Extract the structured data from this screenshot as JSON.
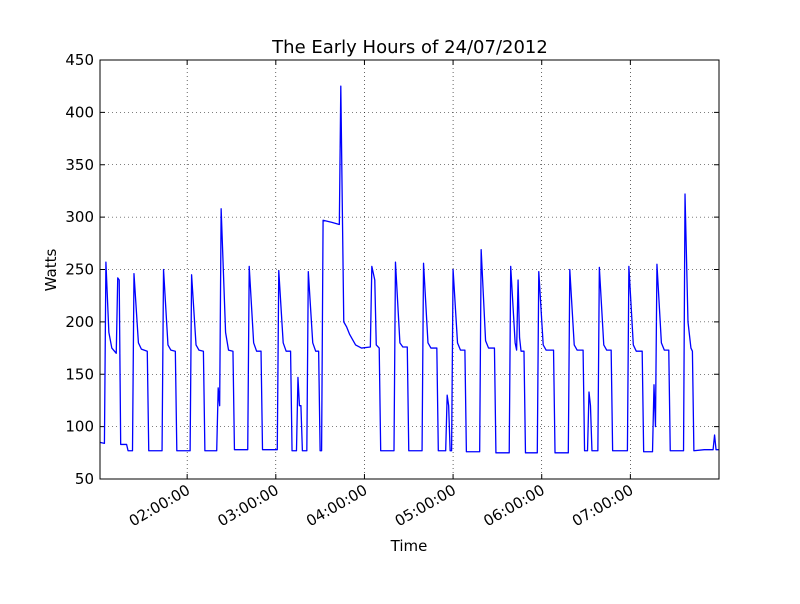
{
  "chart_data": {
    "type": "line",
    "title": "The Early Hours of 24/07/2012",
    "x_label": "Time",
    "y_label": "Watts",
    "color": "#0000ff",
    "grid": true,
    "x": [
      "01:01:00",
      "01:04:00",
      "01:05:00",
      "01:07:00",
      "01:09:00",
      "01:12:00",
      "01:13:00",
      "01:14:00",
      "01:15:00",
      "01:19:00",
      "01:20:00",
      "01:23:00",
      "01:24:00",
      "01:27:00",
      "01:29:00",
      "01:33:00",
      "01:34:00",
      "01:43:00",
      "01:44:00",
      "01:47:00",
      "01:49:00",
      "01:52:00",
      "01:53:00",
      "02:02:00",
      "02:03:00",
      "02:06:00",
      "02:08:00",
      "02:11:00",
      "02:12:00",
      "02:20:00",
      "02:21:00",
      "02:22:00",
      "02:23:00",
      "02:26:00",
      "02:28:00",
      "02:31:00",
      "02:32:00",
      "02:41:00",
      "02:42:00",
      "02:45:00",
      "02:47:00",
      "02:50:00",
      "02:51:00",
      "03:01:00",
      "03:02:00",
      "03:05:00",
      "03:07:00",
      "03:10:00",
      "03:11:00",
      "03:14:00",
      "03:15:00",
      "03:16:00",
      "03:17:00",
      "03:18:00",
      "03:21:00",
      "03:22:00",
      "03:25:00",
      "03:27:00",
      "03:29:00",
      "03:30:00",
      "03:31:00",
      "03:32:00",
      "03:38:00",
      "03:43:00",
      "03:44:00",
      "03:46:00",
      "03:48:00",
      "03:50:00",
      "03:54:00",
      "03:58:00",
      "04:04:00",
      "04:05:00",
      "04:07:00",
      "04:08:00",
      "04:10:00",
      "04:11:00",
      "04:20:00",
      "04:21:00",
      "04:24:00",
      "04:26:00",
      "04:29:00",
      "04:30:00",
      "04:39:00",
      "04:40:00",
      "04:43:00",
      "04:45:00",
      "04:49:00",
      "04:50:00",
      "04:55:00",
      "04:56:00",
      "04:57:00",
      "04:58:00",
      "04:59:00",
      "05:00:00",
      "05:03:00",
      "05:05:00",
      "05:08:00",
      "05:09:00",
      "05:18:00",
      "05:19:00",
      "05:22:00",
      "05:24:00",
      "05:28:00",
      "05:29:00",
      "05:38:00",
      "05:39:00",
      "05:42:00",
      "05:43:00",
      "05:44:00",
      "05:45:00",
      "05:46:00",
      "05:48:00",
      "05:49:00",
      "05:57:00",
      "05:58:00",
      "06:01:00",
      "06:03:00",
      "06:08:00",
      "06:09:00",
      "06:18:00",
      "06:19:00",
      "06:22:00",
      "06:24:00",
      "06:28:00",
      "06:29:00",
      "06:31:00",
      "06:32:00",
      "06:33:00",
      "06:34:00",
      "06:38:00",
      "06:39:00",
      "06:42:00",
      "06:44:00",
      "06:47:00",
      "06:48:00",
      "06:58:00",
      "06:59:00",
      "07:02:00",
      "07:04:00",
      "07:08:00",
      "07:09:00",
      "07:15:00",
      "07:16:00",
      "07:17:00",
      "07:18:00",
      "07:21:00",
      "07:23:00",
      "07:26:00",
      "07:27:00",
      "07:36:00",
      "07:37:00",
      "07:39:00",
      "07:41:00",
      "07:42:00",
      "07:43:00",
      "07:50:00",
      "07:56:00",
      "07:57:00",
      "07:58:00",
      "08:00:00"
    ],
    "values": [
      85,
      84,
      257,
      190,
      175,
      170,
      242,
      240,
      83,
      83,
      77,
      77,
      246,
      180,
      174,
      172,
      77,
      77,
      250,
      178,
      173,
      172,
      77,
      77,
      245,
      178,
      173,
      172,
      77,
      77,
      137,
      120,
      308,
      190,
      173,
      172,
      78,
      78,
      253,
      180,
      172,
      172,
      78,
      78,
      249,
      180,
      172,
      172,
      77,
      77,
      147,
      120,
      120,
      77,
      77,
      248,
      180,
      172,
      172,
      77,
      77,
      297,
      295,
      293,
      425,
      200,
      195,
      188,
      178,
      175,
      176,
      253,
      240,
      178,
      175,
      77,
      77,
      257,
      180,
      176,
      176,
      77,
      77,
      256,
      180,
      175,
      175,
      77,
      77,
      130,
      120,
      77,
      77,
      250,
      180,
      173,
      173,
      76,
      76,
      269,
      182,
      175,
      175,
      75,
      75,
      253,
      180,
      173,
      240,
      185,
      172,
      172,
      75,
      75,
      248,
      178,
      173,
      173,
      75,
      75,
      250,
      178,
      173,
      173,
      77,
      77,
      133,
      120,
      77,
      77,
      252,
      178,
      173,
      173,
      77,
      77,
      253,
      178,
      172,
      172,
      76,
      76,
      140,
      100,
      255,
      180,
      173,
      173,
      77,
      77,
      322,
      200,
      175,
      172,
      77,
      78,
      78,
      92,
      78,
      78
    ],
    "xlim": [
      "01:01:00",
      "08:00:00"
    ],
    "xticks": [
      "02:00:00",
      "03:00:00",
      "04:00:00",
      "05:00:00",
      "06:00:00",
      "07:00:00"
    ],
    "ylim": [
      50,
      450
    ],
    "yticks": [
      50,
      100,
      150,
      200,
      250,
      300,
      350,
      400,
      450
    ]
  }
}
